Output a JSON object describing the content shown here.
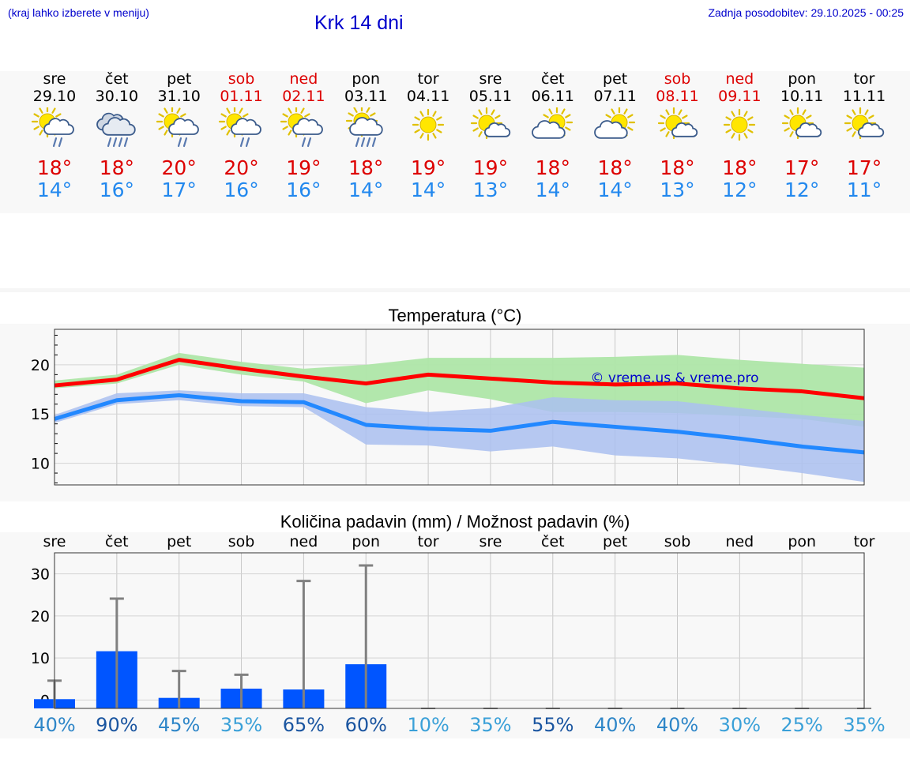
{
  "header": {
    "menu_hint": "(kraj lahko izberete v meniju)",
    "title": "Krk 14 dni",
    "last_update": "Zadnja posodobitev: 29.10.2025 - 00:25"
  },
  "colors": {
    "max_temp": "#dd0000",
    "min_temp": "#2288ee",
    "bar": "#0055ff",
    "max_band": "#aee6a8",
    "min_band": "#aabff0"
  },
  "days": [
    {
      "name": "sre",
      "date": "29.10",
      "weekend": false,
      "icon": "sun-cloud-rain",
      "max": "18°",
      "min": "14°"
    },
    {
      "name": "čet",
      "date": "30.10",
      "weekend": false,
      "icon": "cloud-heavy-rain",
      "max": "18°",
      "min": "16°"
    },
    {
      "name": "pet",
      "date": "31.10",
      "weekend": false,
      "icon": "sun-cloud-rain",
      "max": "20°",
      "min": "17°"
    },
    {
      "name": "sob",
      "date": "01.11",
      "weekend": true,
      "icon": "sun-cloud-rain",
      "max": "20°",
      "min": "16°"
    },
    {
      "name": "ned",
      "date": "02.11",
      "weekend": true,
      "icon": "sun-cloud-rain",
      "max": "19°",
      "min": "16°"
    },
    {
      "name": "pon",
      "date": "03.11",
      "weekend": false,
      "icon": "sun-cloud-heavy-rain",
      "max": "18°",
      "min": "14°"
    },
    {
      "name": "tor",
      "date": "04.11",
      "weekend": false,
      "icon": "sun",
      "max": "19°",
      "min": "14°"
    },
    {
      "name": "sre",
      "date": "05.11",
      "weekend": false,
      "icon": "sun-small-cloud",
      "max": "19°",
      "min": "13°"
    },
    {
      "name": "čet",
      "date": "06.11",
      "weekend": false,
      "icon": "sun-cloud",
      "max": "18°",
      "min": "14°"
    },
    {
      "name": "pet",
      "date": "07.11",
      "weekend": false,
      "icon": "sun-cloud",
      "max": "18°",
      "min": "14°"
    },
    {
      "name": "sob",
      "date": "08.11",
      "weekend": true,
      "icon": "sun-small-cloud",
      "max": "18°",
      "min": "13°"
    },
    {
      "name": "ned",
      "date": "09.11",
      "weekend": true,
      "icon": "sun",
      "max": "18°",
      "min": "12°"
    },
    {
      "name": "pon",
      "date": "10.11",
      "weekend": false,
      "icon": "sun-small-cloud",
      "max": "17°",
      "min": "12°"
    },
    {
      "name": "tor",
      "date": "11.11",
      "weekend": false,
      "icon": "sun-small-cloud",
      "max": "17°",
      "min": "11°"
    }
  ],
  "chart_data": [
    {
      "type": "line",
      "title": "Temperatura (°C)",
      "watermark": "© vreme.us & vreme.pro",
      "x": [
        "sre",
        "čet",
        "pet",
        "sob",
        "ned",
        "pon",
        "tor",
        "sre",
        "čet",
        "pet",
        "sob",
        "ned",
        "pon",
        "tor"
      ],
      "ylim": [
        7.8,
        23.6
      ],
      "yticks": [
        10,
        15,
        20
      ],
      "series": [
        {
          "name": "max",
          "color": "#ff0000",
          "values": [
            17.9,
            18.5,
            20.5,
            19.6,
            18.8,
            18.1,
            19.0,
            18.6,
            18.2,
            18.0,
            18.1,
            17.6,
            17.3,
            16.6
          ],
          "band_low": [
            17.6,
            18.1,
            20.0,
            19.0,
            18.3,
            16.1,
            17.4,
            16.5,
            15.2,
            15.2,
            15.1,
            14.8,
            14.5,
            13.7
          ],
          "band_high": [
            18.4,
            19.0,
            21.2,
            20.3,
            19.6,
            20.0,
            20.7,
            20.7,
            20.7,
            20.8,
            21.0,
            20.5,
            20.1,
            19.7
          ]
        },
        {
          "name": "min",
          "color": "#2288ff",
          "values": [
            14.5,
            16.4,
            16.9,
            16.3,
            16.2,
            13.9,
            13.5,
            13.3,
            14.2,
            13.7,
            13.2,
            12.5,
            11.7,
            11.1
          ],
          "band_low": [
            14.1,
            16.0,
            16.4,
            15.8,
            15.7,
            11.9,
            11.8,
            11.2,
            11.7,
            10.8,
            10.5,
            9.8,
            9.0,
            8.1
          ],
          "band_high": [
            14.9,
            17.1,
            17.4,
            17.1,
            17.1,
            15.7,
            15.2,
            15.6,
            16.7,
            16.4,
            16.3,
            15.6,
            14.9,
            14.3
          ]
        }
      ]
    },
    {
      "type": "bar",
      "title": "Količina padavin (mm) / Možnost padavin (%)",
      "categories": [
        "sre",
        "čet",
        "pet",
        "sob",
        "ned",
        "pon",
        "tor",
        "sre",
        "čet",
        "pet",
        "sob",
        "ned",
        "pon",
        "tor"
      ],
      "values": [
        0.2,
        11.6,
        0.5,
        2.7,
        2.5,
        8.5,
        0,
        0,
        0,
        0,
        0,
        0,
        0,
        0
      ],
      "error_max": [
        4.6,
        24.1,
        6.9,
        6.0,
        28.3,
        32.0,
        0,
        0,
        0,
        0,
        0,
        0,
        0,
        0
      ],
      "chance": [
        "40%",
        "90%",
        "45%",
        "35%",
        "65%",
        "60%",
        "10%",
        "35%",
        "55%",
        "40%",
        "40%",
        "30%",
        "25%",
        "35%"
      ],
      "chance_values": [
        40,
        90,
        45,
        35,
        65,
        60,
        10,
        35,
        55,
        40,
        40,
        30,
        25,
        35
      ],
      "ylim": [
        -2,
        35
      ],
      "yticks": [
        0,
        10,
        20,
        30
      ]
    }
  ]
}
